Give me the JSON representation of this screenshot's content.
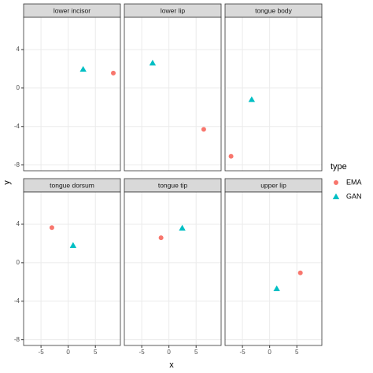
{
  "chart_data": {
    "type": "scatter",
    "x_label": "x",
    "y_label": "y",
    "legend_title": "type",
    "facets": [
      "lower incisor",
      "lower lip",
      "tongue body",
      "tongue dorsum",
      "tongue tip",
      "upper lip"
    ],
    "series": [
      {
        "name": "EMA",
        "color": "#f8766d",
        "shape": "circle",
        "x": [
          8.3,
          6.4,
          -7.1,
          -3.0,
          -1.45,
          5.65
        ],
        "y": [
          1.55,
          -4.3,
          -7.1,
          3.65,
          2.6,
          -1.05
        ]
      },
      {
        "name": "GAN",
        "color": "#00bfc4",
        "shape": "triangle",
        "x": [
          2.75,
          -3.0,
          -3.3,
          0.9,
          2.45,
          1.3
        ],
        "y": [
          1.95,
          2.6,
          -1.2,
          1.8,
          3.6,
          -2.7
        ]
      }
    ],
    "xlim": [
      -8.2,
      9.6
    ],
    "ylim": [
      -8.6,
      7.35
    ],
    "xticks": [
      -5,
      0,
      5
    ],
    "yticks": [
      -8,
      -4,
      0,
      4
    ],
    "grid": true
  }
}
